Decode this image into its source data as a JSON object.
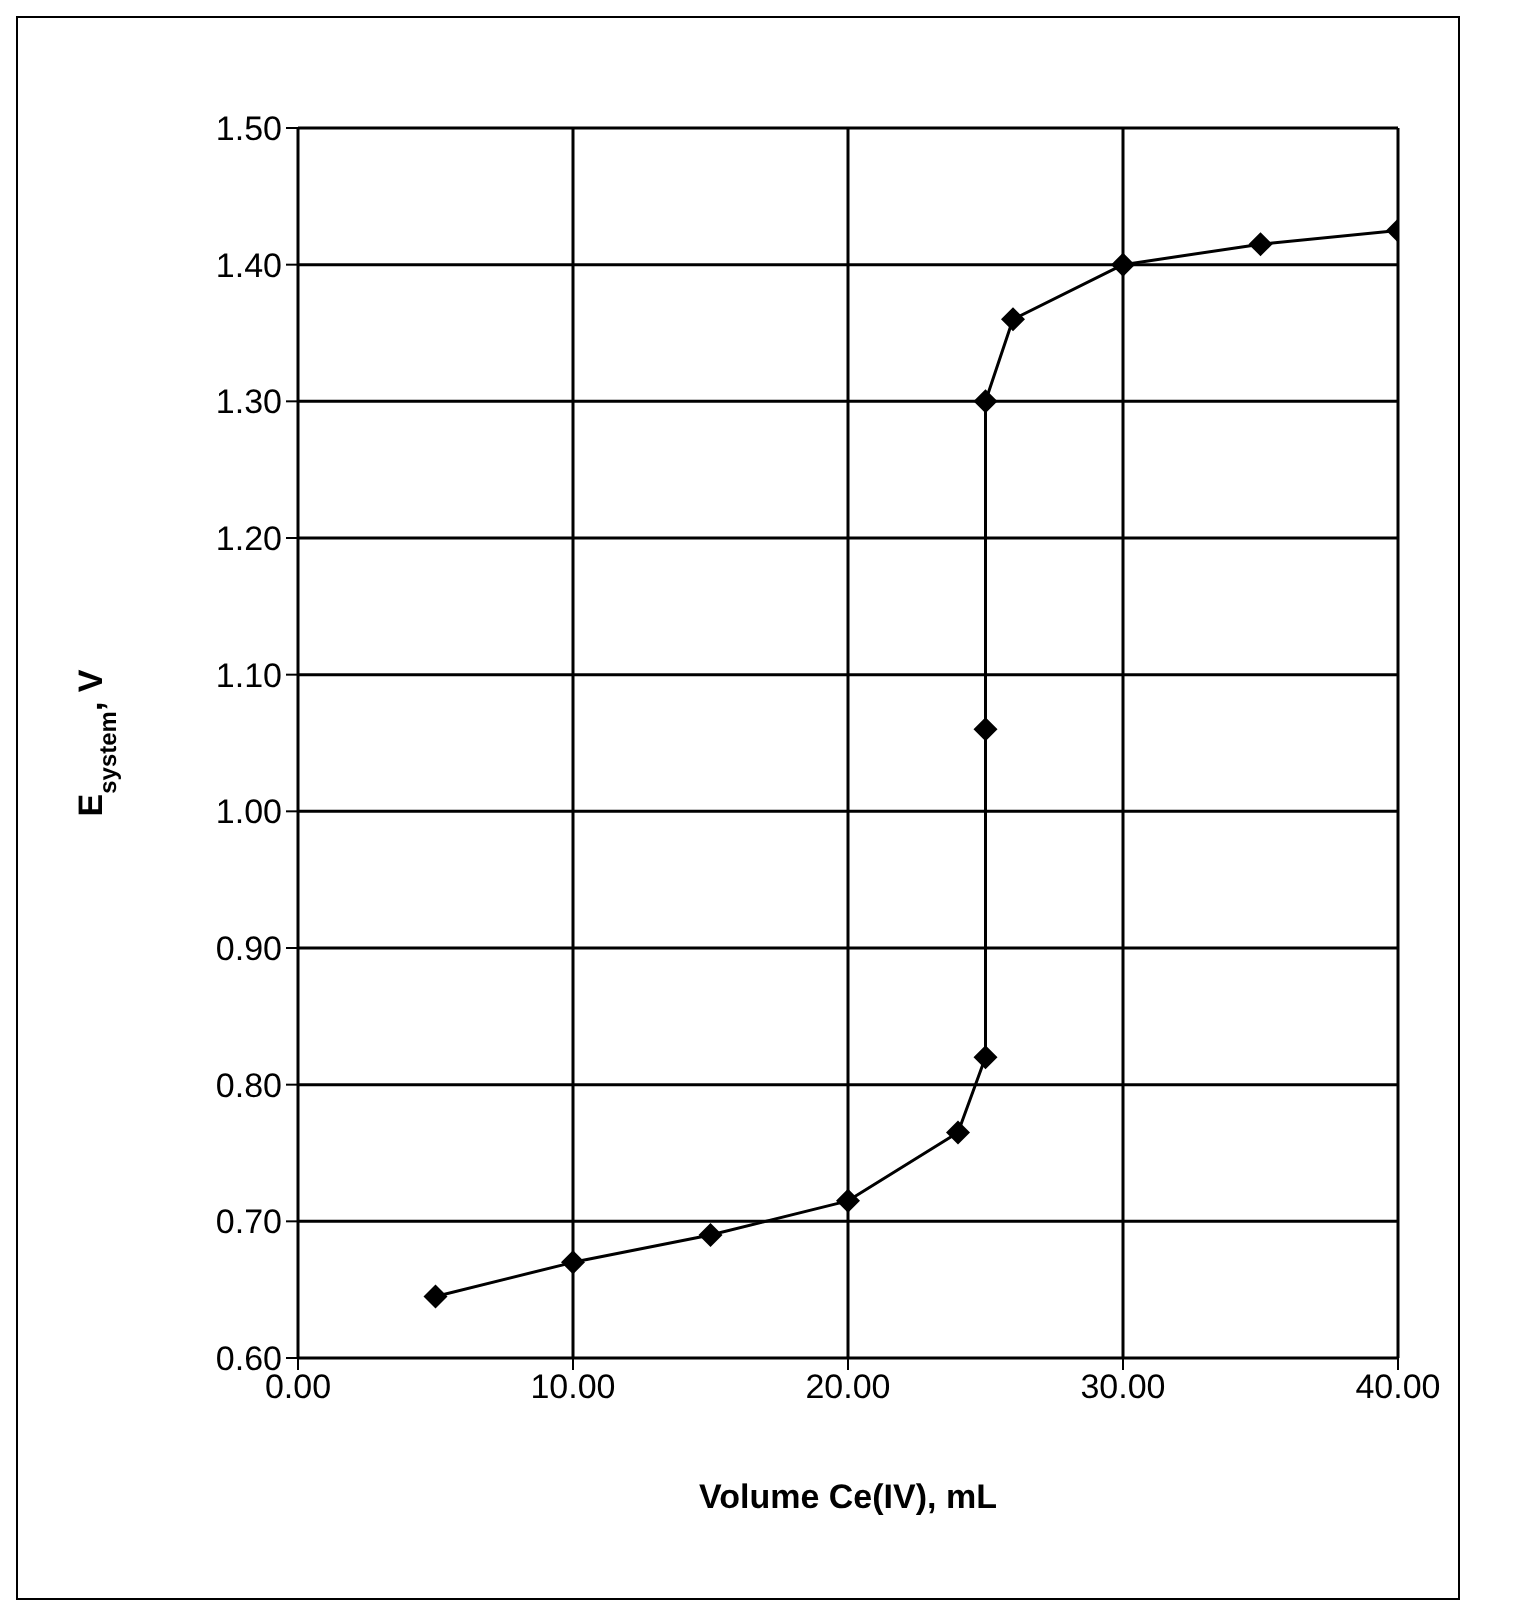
{
  "chart_data": {
    "type": "line",
    "xlabel": "Volume Ce(IV), mL",
    "ylabel": "E$_{system}$, V",
    "x": [
      5,
      10,
      15,
      20,
      24,
      25,
      25,
      25,
      26,
      30,
      35,
      40
    ],
    "series": [
      {
        "color": "#000000",
        "values": [
          0.645,
          0.67,
          0.69,
          0.715,
          0.765,
          0.82,
          1.06,
          1.3,
          1.36,
          1.4,
          1.415,
          1.425
        ]
      }
    ],
    "xlim": [
      0,
      40
    ],
    "xticks": [
      {
        "value": 0,
        "label": "0.00"
      },
      {
        "value": 10,
        "label": "10.00"
      },
      {
        "value": 20,
        "label": "20.00"
      },
      {
        "value": 30,
        "label": "30.00"
      },
      {
        "value": 40,
        "label": "40.00"
      }
    ],
    "ylim": [
      0.6,
      1.5
    ],
    "yticks": [
      {
        "value": 0.6,
        "label": "0.60"
      },
      {
        "value": 0.7,
        "label": "0.70"
      },
      {
        "value": 0.8,
        "label": "0.80"
      },
      {
        "value": 0.9,
        "label": "0.90"
      },
      {
        "value": 1.0,
        "label": "1.00"
      },
      {
        "value": 1.1,
        "label": "1.10"
      },
      {
        "value": 1.2,
        "label": "1.20"
      },
      {
        "value": 1.3,
        "label": "1.30"
      },
      {
        "value": 1.4,
        "label": "1.40"
      },
      {
        "value": 1.5,
        "label": "1.50"
      }
    ],
    "grid": true,
    "marker": "diamond",
    "line_style": "solid",
    "legend": false
  }
}
